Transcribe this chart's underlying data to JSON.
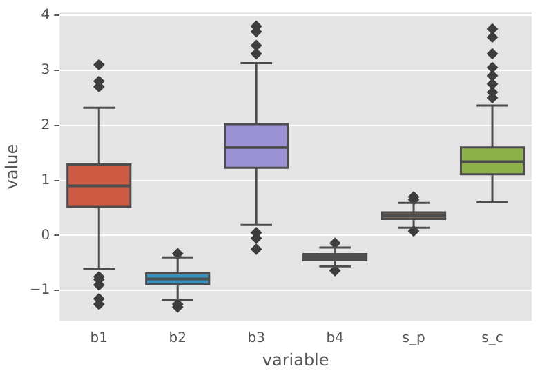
{
  "chart_data": {
    "type": "box",
    "xlabel": "variable",
    "ylabel": "value",
    "categories": [
      "b1",
      "b2",
      "b3",
      "b4",
      "s_p",
      "s_c"
    ],
    "colors": [
      "#cf5a43",
      "#3b8fbb",
      "#9a92d2",
      "#5a5a5a",
      "#7f6b50",
      "#8db04a"
    ],
    "boxes": [
      {
        "low": -0.61,
        "q1": 0.52,
        "median": 0.9,
        "q3": 1.29,
        "high": 2.32,
        "outliers": [
          3.1,
          2.8,
          2.7,
          -0.75,
          -0.8,
          -0.9,
          -1.15,
          -1.25
        ]
      },
      {
        "low": -1.17,
        "q1": -0.89,
        "median": -0.79,
        "q3": -0.69,
        "high": -0.4,
        "outliers": [
          -0.33,
          -1.25,
          -1.3
        ]
      },
      {
        "low": 0.19,
        "q1": 1.23,
        "median": 1.6,
        "q3": 2.02,
        "high": 3.13,
        "outliers": [
          3.3,
          3.45,
          3.7,
          3.8,
          0.05,
          -0.05,
          -0.25
        ]
      },
      {
        "low": -0.56,
        "q1": -0.45,
        "median": -0.39,
        "q3": -0.34,
        "high": -0.22,
        "outliers": [
          -0.14,
          -0.64
        ]
      },
      {
        "low": 0.14,
        "q1": 0.3,
        "median": 0.36,
        "q3": 0.42,
        "high": 0.59,
        "outliers": [
          0.65,
          0.7,
          0.08
        ]
      },
      {
        "low": 0.6,
        "q1": 1.11,
        "median": 1.34,
        "q3": 1.6,
        "high": 2.36,
        "outliers": [
          2.5,
          2.6,
          2.75,
          2.9,
          3.05,
          3.3,
          3.6,
          3.75
        ]
      }
    ],
    "ylim": [
      -1.55,
      4.05
    ],
    "yticks": [
      -1,
      0,
      1,
      2,
      3,
      4
    ],
    "grid": "y",
    "marker": "diamond"
  }
}
